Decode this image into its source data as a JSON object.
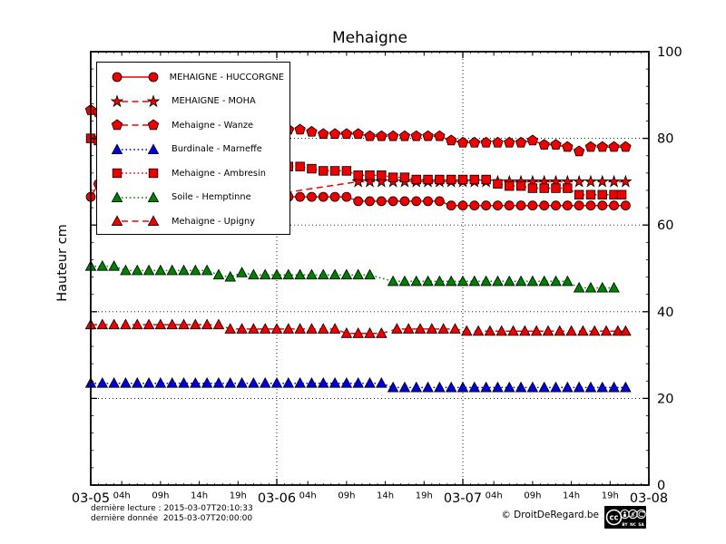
{
  "title": "Mehaigne",
  "ylabel": "Hauteur cm",
  "footer": {
    "last_reading": "dernière lecture : 2015-03-07T20:10:33",
    "last_data": "dernière donnée  2015-03-07T20:00:00",
    "credit": "© DroitDeRegard.be",
    "cc_logo": "cc",
    "cc_labels": [
      "BY",
      "NC",
      "SA"
    ]
  },
  "chart_data": {
    "type": "line",
    "title": "Mehaigne",
    "ylabel": "Hauteur cm",
    "units": "cm",
    "ylim": [
      0,
      100
    ],
    "xlim_hours": [
      0,
      72
    ],
    "legend_position": "upper left",
    "grid": {
      "h_values": [
        20,
        40,
        60,
        80
      ],
      "v_hours": [
        24,
        48
      ]
    },
    "y_ticks": [
      0,
      20,
      40,
      60,
      80,
      100
    ],
    "y_minor_step": 4,
    "x_day_ticks": [
      {
        "t": 0,
        "label": "03-05"
      },
      {
        "t": 24,
        "label": "03-06"
      },
      {
        "t": 48,
        "label": "03-07"
      },
      {
        "t": 72,
        "label": "03-08"
      }
    ],
    "x_hour_ticks": [
      {
        "t": 4,
        "label": "04h"
      },
      {
        "t": 9,
        "label": "09h"
      },
      {
        "t": 14,
        "label": "14h"
      },
      {
        "t": 19,
        "label": "19h"
      },
      {
        "t": 28,
        "label": "04h"
      },
      {
        "t": 33,
        "label": "09h"
      },
      {
        "t": 38,
        "label": "14h"
      },
      {
        "t": 43,
        "label": "19h"
      },
      {
        "t": 52,
        "label": "04h"
      },
      {
        "t": 57,
        "label": "09h"
      },
      {
        "t": 62,
        "label": "14h"
      },
      {
        "t": 67,
        "label": "19h"
      }
    ],
    "colors": {
      "red": "#ee0000",
      "blue": "#0000dd",
      "green": "#008000"
    },
    "series": [
      {
        "id": "huccorgne",
        "label": "MEHAIGNE - HUCCORGNE",
        "color": "#ee0000",
        "line": "solid",
        "marker": "circle",
        "points": [
          [
            0,
            66.5
          ],
          [
            1,
            69.5
          ],
          [
            22.5,
            67
          ],
          [
            24,
            66.5
          ],
          [
            25.5,
            66.5
          ],
          [
            27,
            66.5
          ],
          [
            28.5,
            66.5
          ],
          [
            30,
            66.5
          ],
          [
            31.5,
            66.5
          ],
          [
            33,
            66.5
          ],
          [
            34.5,
            65.5
          ],
          [
            36,
            65.5
          ],
          [
            37.5,
            65.5
          ],
          [
            39,
            65.5
          ],
          [
            40.5,
            65.5
          ],
          [
            42,
            65.5
          ],
          [
            43.5,
            65.5
          ],
          [
            45,
            65.5
          ],
          [
            46.5,
            64.5
          ],
          [
            48,
            64.5
          ],
          [
            49.5,
            64.5
          ],
          [
            51,
            64.5
          ],
          [
            52.5,
            64.5
          ],
          [
            54,
            64.5
          ],
          [
            55.5,
            64.5
          ],
          [
            57,
            64.5
          ],
          [
            58.5,
            64.5
          ],
          [
            60,
            64.5
          ],
          [
            61.5,
            64.5
          ],
          [
            63,
            64.5
          ],
          [
            64.5,
            64.5
          ],
          [
            66,
            64.5
          ],
          [
            67.5,
            64.5
          ],
          [
            69,
            64.5
          ]
        ]
      },
      {
        "id": "moha",
        "label": "MEHAIGNE - MOHA",
        "color": "#ee0000",
        "line": "dashed",
        "marker": "star",
        "marker_from": 34,
        "points": [
          [
            22.5,
            66.5
          ],
          [
            24,
            67
          ],
          [
            25.5,
            67.5
          ],
          [
            27,
            68
          ],
          [
            28.5,
            68.4
          ],
          [
            30,
            68.8
          ],
          [
            31.5,
            69.2
          ],
          [
            33,
            69.6
          ],
          [
            34.5,
            70
          ],
          [
            36,
            70
          ],
          [
            37.5,
            70
          ],
          [
            39,
            70
          ],
          [
            40.5,
            70
          ],
          [
            42,
            70
          ],
          [
            43.5,
            70
          ],
          [
            45,
            70
          ],
          [
            46.5,
            70
          ],
          [
            48,
            70
          ],
          [
            49.5,
            70
          ],
          [
            51,
            70
          ],
          [
            52.5,
            70
          ],
          [
            54,
            70
          ],
          [
            55.5,
            70
          ],
          [
            57,
            70
          ],
          [
            58.5,
            70
          ],
          [
            60,
            70
          ],
          [
            61.5,
            70
          ],
          [
            63,
            70
          ],
          [
            64.5,
            70
          ],
          [
            66,
            70
          ],
          [
            67.5,
            70
          ],
          [
            69,
            70
          ]
        ]
      },
      {
        "id": "wanze",
        "label": "Mehaigne - Wanze",
        "color": "#ee0000",
        "line": "dashed",
        "marker": "pentagon",
        "points": [
          [
            0,
            86.5
          ],
          [
            1,
            86
          ],
          [
            22.5,
            82
          ],
          [
            24,
            82
          ],
          [
            25.5,
            82
          ],
          [
            27,
            82
          ],
          [
            28.5,
            81.5
          ],
          [
            30,
            81
          ],
          [
            31.5,
            81
          ],
          [
            33,
            81
          ],
          [
            34.5,
            81
          ],
          [
            36,
            80.5
          ],
          [
            37.5,
            80.5
          ],
          [
            39,
            80.5
          ],
          [
            40.5,
            80.5
          ],
          [
            42,
            80.5
          ],
          [
            43.5,
            80.5
          ],
          [
            45,
            80.5
          ],
          [
            46.5,
            79.5
          ],
          [
            48,
            79
          ],
          [
            49.5,
            79
          ],
          [
            51,
            79
          ],
          [
            52.5,
            79
          ],
          [
            54,
            79
          ],
          [
            55.5,
            79
          ],
          [
            57,
            79.5
          ],
          [
            58.5,
            78.5
          ],
          [
            60,
            78.5
          ],
          [
            61.5,
            78
          ],
          [
            63,
            77
          ],
          [
            64.5,
            78
          ],
          [
            66,
            78
          ],
          [
            67.5,
            78
          ],
          [
            69,
            78
          ]
        ]
      },
      {
        "id": "marneffe",
        "label": "Burdinale - Marneffe",
        "color": "#0000dd",
        "line": "dotted",
        "marker": "triangle",
        "points": [
          [
            0,
            23.5
          ],
          [
            1.5,
            23.5
          ],
          [
            3,
            23.5
          ],
          [
            4.5,
            23.5
          ],
          [
            6,
            23.5
          ],
          [
            7.5,
            23.5
          ],
          [
            9,
            23.5
          ],
          [
            10.5,
            23.5
          ],
          [
            12,
            23.5
          ],
          [
            13.5,
            23.5
          ],
          [
            15,
            23.5
          ],
          [
            16.5,
            23.5
          ],
          [
            18,
            23.5
          ],
          [
            19.5,
            23.5
          ],
          [
            21,
            23.5
          ],
          [
            22.5,
            23.5
          ],
          [
            24,
            23.5
          ],
          [
            25.5,
            23.5
          ],
          [
            27,
            23.5
          ],
          [
            28.5,
            23.5
          ],
          [
            30,
            23.5
          ],
          [
            31.5,
            23.5
          ],
          [
            33,
            23.5
          ],
          [
            34.5,
            23.5
          ],
          [
            36,
            23.5
          ],
          [
            37.5,
            23.5
          ],
          [
            39,
            22.5
          ],
          [
            40.5,
            22.5
          ],
          [
            42,
            22.5
          ],
          [
            43.5,
            22.5
          ],
          [
            45,
            22.5
          ],
          [
            46.5,
            22.5
          ],
          [
            48,
            22.5
          ],
          [
            49.5,
            22.5
          ],
          [
            51,
            22.5
          ],
          [
            52.5,
            22.5
          ],
          [
            54,
            22.5
          ],
          [
            55.5,
            22.5
          ],
          [
            57,
            22.5
          ],
          [
            58.5,
            22.5
          ],
          [
            60,
            22.5
          ],
          [
            61.5,
            22.5
          ],
          [
            63,
            22.5
          ],
          [
            64.5,
            22.5
          ],
          [
            66,
            22.5
          ],
          [
            67.5,
            22.5
          ],
          [
            69,
            22.5
          ]
        ]
      },
      {
        "id": "ambresin",
        "label": "Mehaigne - Ambresin",
        "color": "#ee0000",
        "line": "dotted",
        "marker": "square",
        "points": [
          [
            0,
            80
          ],
          [
            1,
            79.5
          ],
          [
            22.5,
            73.5
          ],
          [
            24,
            73.5
          ],
          [
            25.5,
            73.5
          ],
          [
            27,
            73.5
          ],
          [
            28.5,
            73
          ],
          [
            30,
            72.5
          ],
          [
            31.5,
            72.5
          ],
          [
            33,
            72.5
          ],
          [
            34.5,
            71.5
          ],
          [
            36,
            71.5
          ],
          [
            37.5,
            71.5
          ],
          [
            39,
            71
          ],
          [
            40.5,
            71
          ],
          [
            42,
            70.5
          ],
          [
            43.5,
            70.5
          ],
          [
            45,
            70.5
          ],
          [
            46.5,
            70.5
          ],
          [
            48,
            70.5
          ],
          [
            49.5,
            70.5
          ],
          [
            51,
            70.5
          ],
          [
            52.5,
            69.5
          ],
          [
            54,
            69
          ],
          [
            55.5,
            69
          ],
          [
            57,
            68.5
          ],
          [
            58.5,
            68.5
          ],
          [
            60,
            68.5
          ],
          [
            61.5,
            68.5
          ],
          [
            63,
            67
          ],
          [
            64.5,
            67
          ],
          [
            66,
            67
          ],
          [
            67.5,
            67
          ],
          [
            68.5,
            67
          ]
        ]
      },
      {
        "id": "hemptinne",
        "label": "Soile - Hemptinne",
        "color": "#008000",
        "line": "dotted",
        "marker": "triangle",
        "points": [
          [
            0,
            50.5
          ],
          [
            1.5,
            50.5
          ],
          [
            3,
            50.5
          ],
          [
            4.5,
            49.5
          ],
          [
            6,
            49.5
          ],
          [
            7.5,
            49.5
          ],
          [
            9,
            49.5
          ],
          [
            10.5,
            49.5
          ],
          [
            12,
            49.5
          ],
          [
            13.5,
            49.5
          ],
          [
            15,
            49.5
          ],
          [
            16.5,
            48.5
          ],
          [
            18,
            48
          ],
          [
            19.5,
            49
          ],
          [
            21,
            48.5
          ],
          [
            22.5,
            48.5
          ],
          [
            24,
            48.5
          ],
          [
            25.5,
            48.5
          ],
          [
            27,
            48.5
          ],
          [
            28.5,
            48.5
          ],
          [
            30,
            48.5
          ],
          [
            31.5,
            48.5
          ],
          [
            33,
            48.5
          ],
          [
            34.5,
            48.5
          ],
          [
            36,
            48.5
          ],
          [
            39,
            47
          ],
          [
            40.5,
            47
          ],
          [
            42,
            47
          ],
          [
            43.5,
            47
          ],
          [
            45,
            47
          ],
          [
            46.5,
            47
          ],
          [
            48,
            47
          ],
          [
            49.5,
            47
          ],
          [
            51,
            47
          ],
          [
            52.5,
            47
          ],
          [
            54,
            47
          ],
          [
            55.5,
            47
          ],
          [
            57,
            47
          ],
          [
            58.5,
            47
          ],
          [
            60,
            47
          ],
          [
            61.5,
            47
          ],
          [
            63,
            45.5
          ],
          [
            64.5,
            45.5
          ],
          [
            66,
            45.5
          ],
          [
            67.5,
            45.5
          ]
        ]
      },
      {
        "id": "upigny",
        "label": "Mehaigne - Upigny",
        "color": "#ee0000",
        "line": "dashed",
        "marker": "triangle",
        "points": [
          [
            0,
            37
          ],
          [
            1.5,
            37
          ],
          [
            3,
            37
          ],
          [
            4.5,
            37
          ],
          [
            6,
            37
          ],
          [
            7.5,
            37
          ],
          [
            9,
            37
          ],
          [
            10.5,
            37
          ],
          [
            12,
            37
          ],
          [
            13.5,
            37
          ],
          [
            15,
            37
          ],
          [
            16.5,
            37
          ],
          [
            18,
            36
          ],
          [
            19.5,
            36
          ],
          [
            21,
            36
          ],
          [
            22.5,
            36
          ],
          [
            24,
            36
          ],
          [
            25.5,
            36
          ],
          [
            27,
            36
          ],
          [
            28.5,
            36
          ],
          [
            30,
            36
          ],
          [
            31.5,
            36
          ],
          [
            33,
            35
          ],
          [
            34.5,
            35
          ],
          [
            36,
            35
          ],
          [
            37.5,
            35
          ],
          [
            39.5,
            36
          ],
          [
            41,
            36
          ],
          [
            42.5,
            36
          ],
          [
            44,
            36
          ],
          [
            45.5,
            36
          ],
          [
            47,
            36
          ],
          [
            48.5,
            35.5
          ],
          [
            50,
            35.5
          ],
          [
            51.5,
            35.5
          ],
          [
            53,
            35.5
          ],
          [
            54.5,
            35.5
          ],
          [
            56,
            35.5
          ],
          [
            57.5,
            35.5
          ],
          [
            59,
            35.5
          ],
          [
            60.5,
            35.5
          ],
          [
            62,
            35.5
          ],
          [
            63.5,
            35.5
          ],
          [
            65,
            35.5
          ],
          [
            66.5,
            35.5
          ],
          [
            68,
            35.5
          ],
          [
            69,
            35.5
          ]
        ]
      }
    ]
  }
}
